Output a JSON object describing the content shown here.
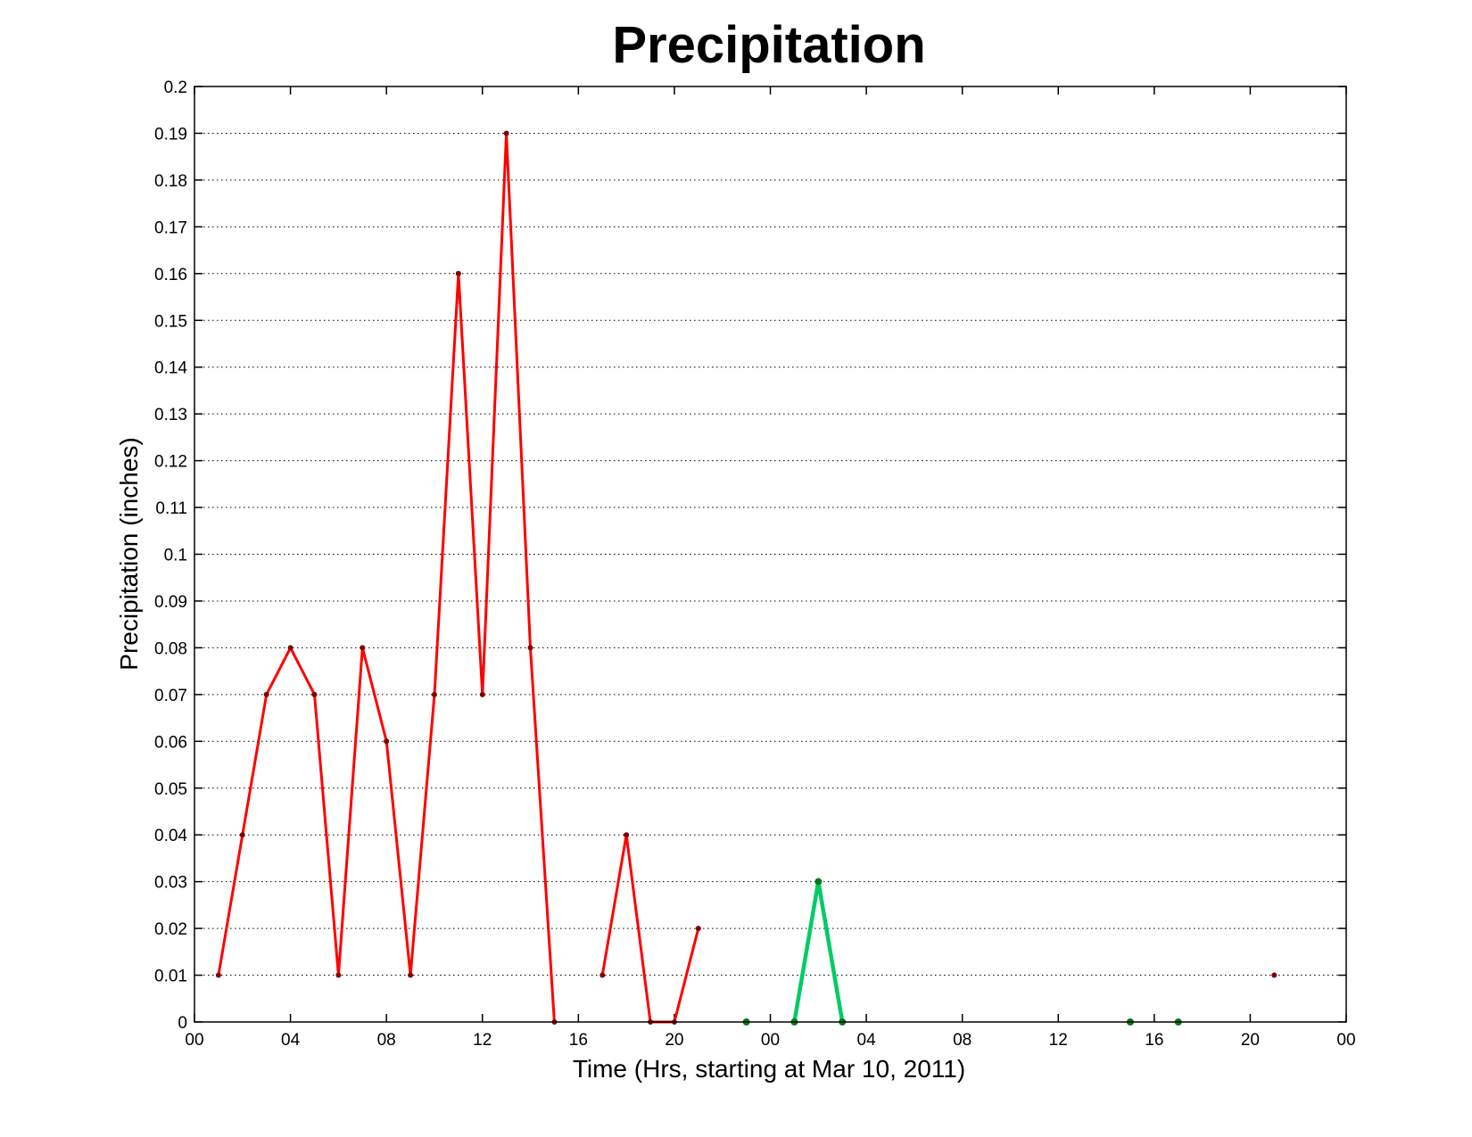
{
  "chart_data": {
    "type": "line",
    "title": "Precipitation",
    "xlabel": "Time (Hrs, starting at Mar 10, 2011)",
    "ylabel": "Precipitation (inches)",
    "xlim": [
      0,
      48
    ],
    "ylim": [
      0,
      0.2
    ],
    "grid": "y-dotted",
    "x_ticks": [
      0,
      4,
      8,
      12,
      16,
      20,
      24,
      28,
      32,
      36,
      40,
      44,
      48
    ],
    "x_tick_labels": [
      "00",
      "04",
      "08",
      "12",
      "16",
      "20",
      "00",
      "04",
      "08",
      "12",
      "16",
      "20",
      "00"
    ],
    "y_ticks": [
      0,
      0.01,
      0.02,
      0.03,
      0.04,
      0.05,
      0.06,
      0.07,
      0.08,
      0.09,
      0.1,
      0.11,
      0.12,
      0.13,
      0.14,
      0.15,
      0.16,
      0.17,
      0.18,
      0.19,
      0.2
    ],
    "y_tick_labels": [
      "0",
      "0.01",
      "0.02",
      "0.03",
      "0.04",
      "0.05",
      "0.06",
      "0.07",
      "0.08",
      "0.09",
      "0.1",
      "0.11",
      "0.12",
      "0.13",
      "0.14",
      "0.15",
      "0.16",
      "0.17",
      "0.18",
      "0.19",
      "0.2"
    ],
    "series": [
      {
        "color": "#ff0000",
        "marker_color": "#800000",
        "segments": [
          [
            [
              1,
              0.01
            ],
            [
              2,
              0.04
            ],
            [
              3,
              0.07
            ],
            [
              4,
              0.08
            ],
            [
              5,
              0.07
            ],
            [
              6,
              0.01
            ],
            [
              7,
              0.08
            ],
            [
              8,
              0.06
            ],
            [
              9,
              0.01
            ],
            [
              10,
              0.07
            ],
            [
              11,
              0.16
            ],
            [
              12,
              0.07
            ],
            [
              13,
              0.19
            ],
            [
              14,
              0.08
            ],
            [
              15,
              0
            ]
          ],
          [
            [
              17,
              0.01
            ],
            [
              18,
              0.04
            ],
            [
              19,
              0
            ],
            [
              20,
              0
            ],
            [
              21,
              0.02
            ]
          ],
          [
            [
              45,
              0.01
            ]
          ]
        ]
      },
      {
        "color": "#00cc66",
        "marker_color": "#007a20",
        "segments": [
          [
            [
              23,
              0
            ]
          ],
          [
            [
              25,
              0
            ],
            [
              26,
              0.03
            ],
            [
              27,
              0
            ]
          ],
          [
            [
              39,
              0
            ]
          ],
          [
            [
              41,
              0
            ]
          ]
        ]
      }
    ]
  }
}
